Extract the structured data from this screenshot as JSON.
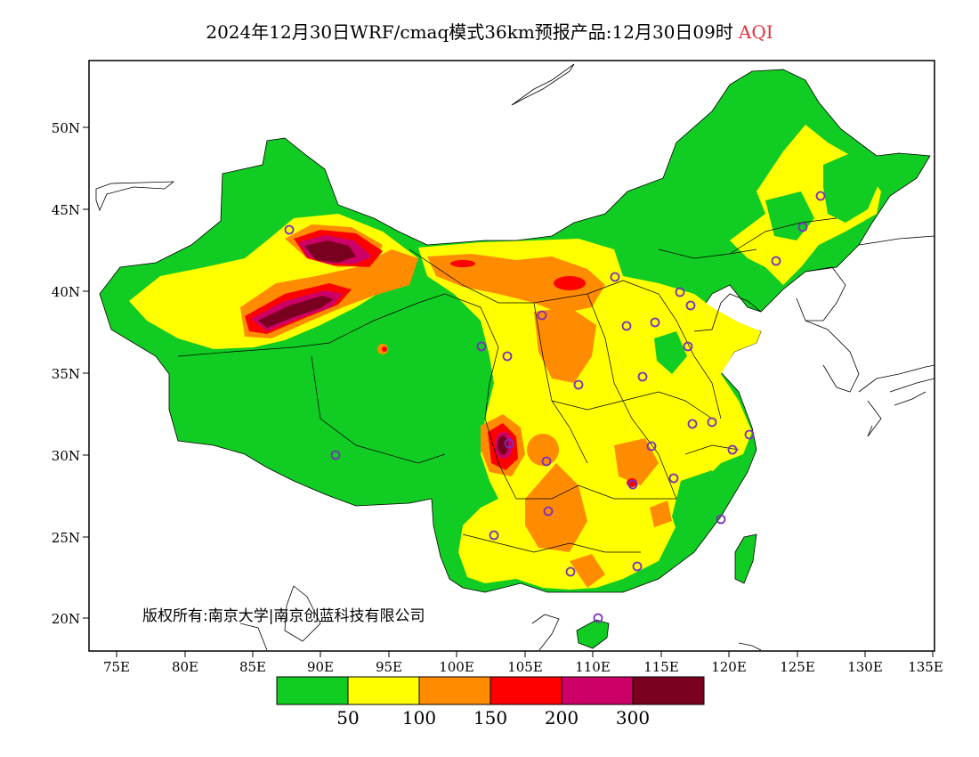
{
  "title": {
    "main": "2024年12月30日WRF/cmaq模式36km预报产品:12月30日09时",
    "variable": "AQI"
  },
  "axes": {
    "lat_labels": [
      "50N",
      "45N",
      "40N",
      "35N",
      "30N",
      "25N",
      "20N"
    ],
    "lon_labels": [
      "75E",
      "80E",
      "85E",
      "90E",
      "95E",
      "100E",
      "105E",
      "110E",
      "115E",
      "120E",
      "125E",
      "130E",
      "135E"
    ]
  },
  "copyright": "版权所有:南京大学|南京创蓝科技有限公司",
  "legend": {
    "colors": [
      "#11cc22",
      "#ffff00",
      "#ff8c00",
      "#ff0000",
      "#cc0066",
      "#7a0020"
    ],
    "labels": [
      "50",
      "100",
      "150",
      "200",
      "300"
    ]
  },
  "colors": {
    "station_marker": "#7b2fbe",
    "coastline": "#000000"
  }
}
